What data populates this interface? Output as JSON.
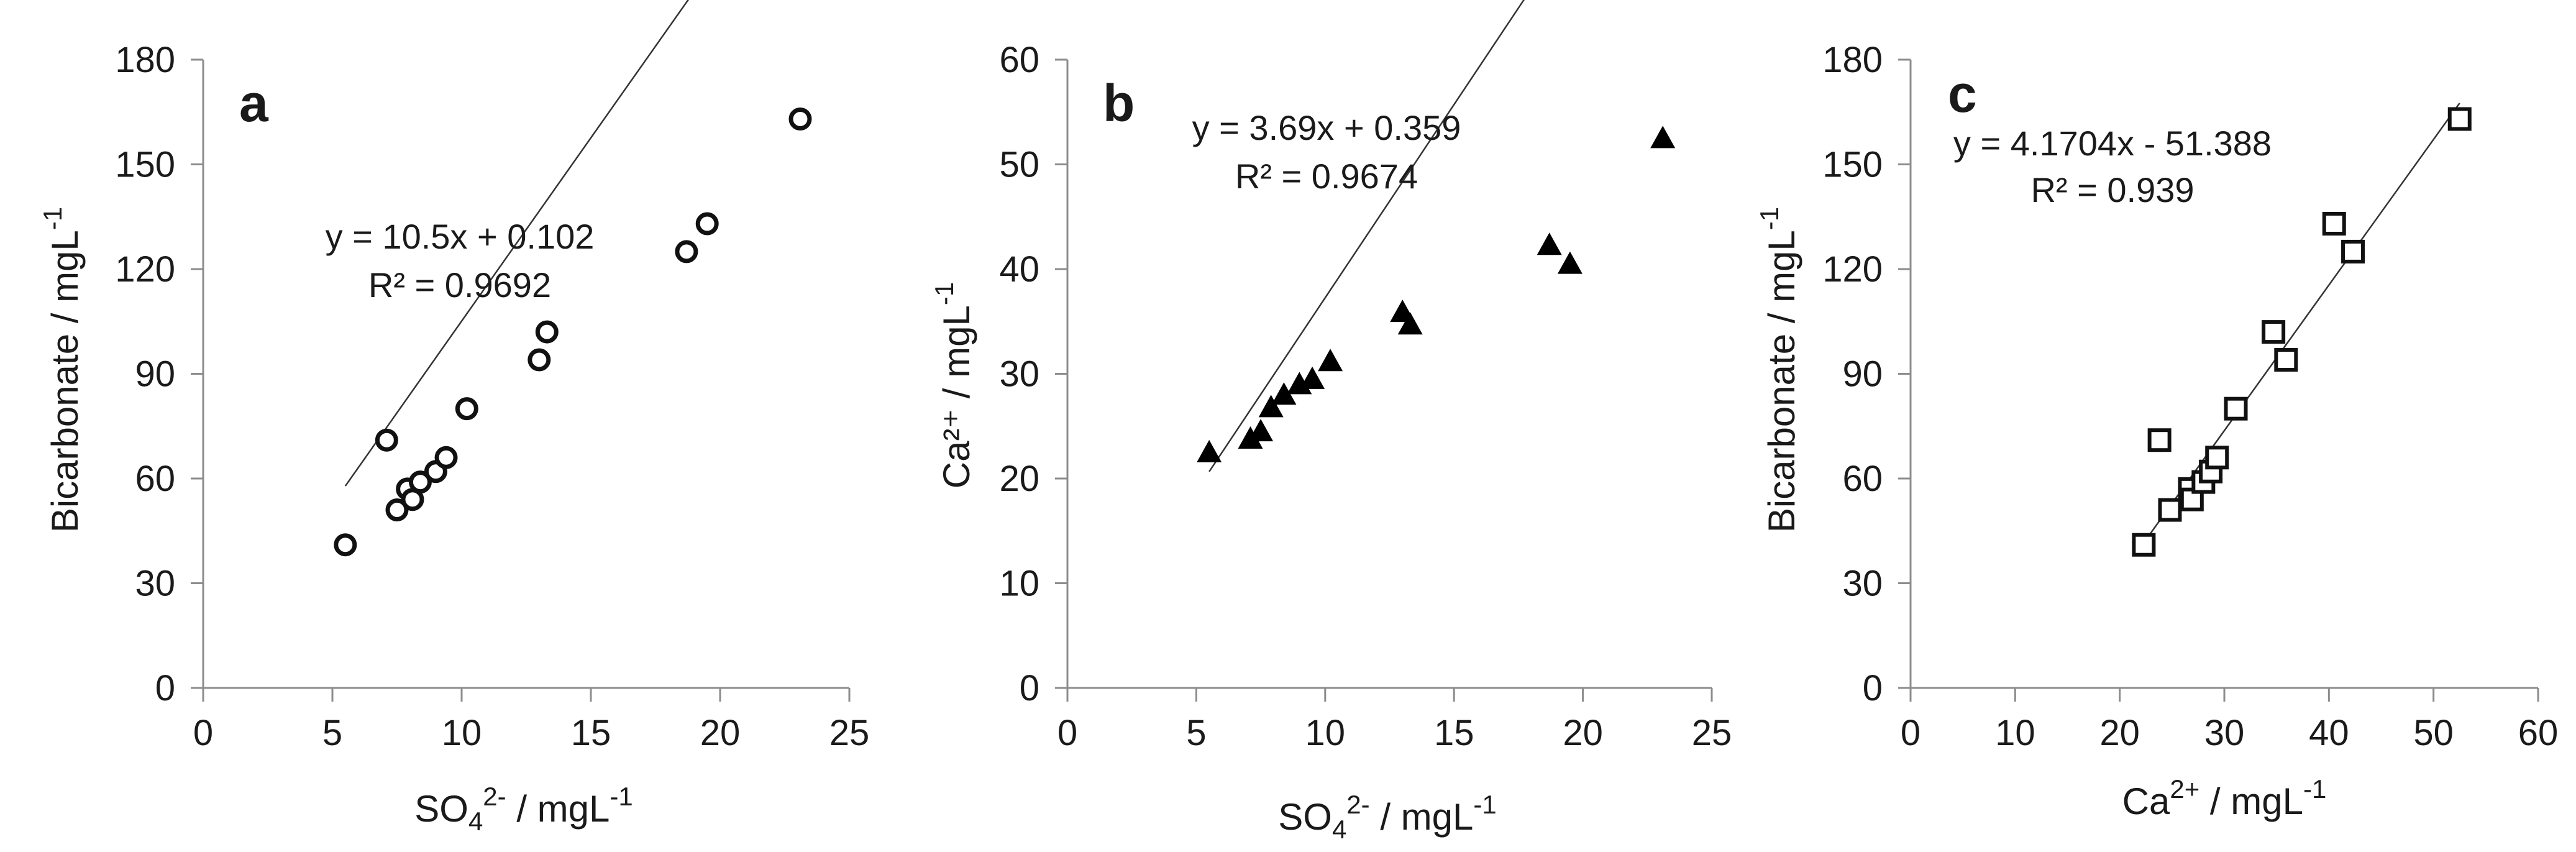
{
  "chart_data": [
    {
      "panel": "a",
      "type": "scatter",
      "marker": "circle-open",
      "xlabel": "SO4 2- / mgL-1",
      "xlabel_parts": {
        "base": "SO",
        "sub": "4",
        "sup": "2-",
        "rest": " / mgL",
        "unit_sup": "-1"
      },
      "ylabel": "Bicarbonate / mgL-1",
      "ylabel_parts": {
        "text": "Bicarbonate / mgL",
        "unit_sup": "-1"
      },
      "xlim": [
        0,
        25
      ],
      "ylim": [
        0,
        180
      ],
      "xticks": [
        "0",
        "5",
        "10",
        "15",
        "20",
        "25"
      ],
      "yticks": [
        "0",
        "30",
        "60",
        "90",
        "120",
        "150",
        "180"
      ],
      "x": [
        5.5,
        7.1,
        7.5,
        7.9,
        8.1,
        8.4,
        9.0,
        9.4,
        10.2,
        13.0,
        13.3,
        18.7,
        19.5,
        23.1
      ],
      "y": [
        41,
        71,
        51,
        57,
        54,
        59,
        62,
        66,
        80,
        94,
        102,
        125,
        133,
        163
      ],
      "trendline": {
        "slope": 10.5,
        "intercept": 0.102,
        "x_range": [
          5.5,
          23.1
        ]
      },
      "equation": "y = 10.5x + 0.102",
      "r2_text": "R² = 0.9692",
      "grid": false
    },
    {
      "panel": "b",
      "type": "scatter",
      "marker": "triangle-filled",
      "xlabel": "SO4 2- / mgL-1",
      "xlabel_parts": {
        "base": "SO",
        "sub": "4",
        "sup": "2-",
        "rest": " / mgL",
        "unit_sup": "-1"
      },
      "ylabel": "Ca2+ / mgL-1",
      "ylabel_parts": {
        "text": "Ca²⁺ / mgL",
        "unit_sup": "-1"
      },
      "xlim": [
        0,
        25
      ],
      "ylim": [
        0,
        60
      ],
      "xticks": [
        "0",
        "5",
        "10",
        "15",
        "20",
        "25"
      ],
      "yticks": [
        "0",
        "10",
        "20",
        "30",
        "40",
        "50",
        "60"
      ],
      "x": [
        5.5,
        7.1,
        7.5,
        7.9,
        8.4,
        9.0,
        9.5,
        10.2,
        13.0,
        13.3,
        18.7,
        19.5,
        23.1
      ],
      "y": [
        22.5,
        23.8,
        24.5,
        26.8,
        28.0,
        29.0,
        29.5,
        31.2,
        35.9,
        34.7,
        42.3,
        40.5,
        52.5
      ],
      "trendline": {
        "slope": 3.69,
        "intercept": 0.359,
        "x_range": [
          5.5,
          23.1
        ]
      },
      "equation": "y = 3.69x + 0.359",
      "r2_text": "R² = 0.9674",
      "grid": false
    },
    {
      "panel": "c",
      "type": "scatter",
      "marker": "square-open",
      "xlabel": "Ca2+ / mgL-1",
      "xlabel_parts": {
        "text": "Ca",
        "sup": "2+",
        "rest": " / mgL",
        "unit_sup": "-1"
      },
      "ylabel": "Bicarbonate / mgL-1",
      "ylabel_parts": {
        "text": "Bicarbonate / mgL",
        "unit_sup": "-1"
      },
      "xlim": [
        0,
        60
      ],
      "ylim": [
        0,
        180
      ],
      "xticks": [
        "0",
        "10",
        "20",
        "30",
        "40",
        "50",
        "60"
      ],
      "yticks": [
        "0",
        "30",
        "60",
        "90",
        "120",
        "150",
        "180"
      ],
      "x": [
        22.3,
        23.8,
        24.8,
        26.7,
        26.9,
        28.0,
        28.7,
        29.3,
        31.1,
        34.7,
        35.9,
        40.5,
        42.3,
        52.5
      ],
      "y": [
        41,
        71,
        51,
        57,
        54,
        59,
        62,
        66,
        80,
        102,
        94,
        133,
        125,
        163
      ],
      "trendline": {
        "slope": 4.1704,
        "intercept": -51.388,
        "x_range": [
          22.3,
          52.5
        ]
      },
      "equation": "y = 4.1704x - 51.388",
      "r2_text": "R² = 0.939",
      "grid": false
    }
  ]
}
